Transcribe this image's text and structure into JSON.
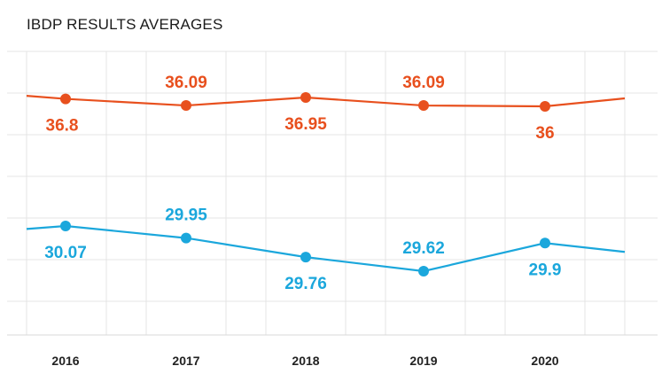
{
  "chart_data": {
    "type": "line",
    "title": "IBDP RESULTS AVERAGES",
    "categories": [
      "2016",
      "2017",
      "2018",
      "2019",
      "2020"
    ],
    "series": [
      {
        "color": "#e8501e",
        "values": [
          36.8,
          36.09,
          36.95,
          36.09,
          36
        ],
        "labels": [
          "36.8",
          "36.09",
          "36.95",
          "36.09",
          "36"
        ],
        "label_positions": [
          "below",
          "above",
          "below",
          "above",
          "below"
        ]
      },
      {
        "color": "#1ba7dc",
        "values": [
          30.07,
          29.95,
          29.76,
          29.62,
          29.9
        ],
        "labels": [
          "30.07",
          "29.95",
          "29.76",
          "29.62",
          "29.9"
        ],
        "label_positions": [
          "below",
          "above",
          "below",
          "above",
          "below"
        ]
      }
    ],
    "xlabel": "",
    "ylabel": "",
    "grid": true,
    "legend": "none"
  }
}
